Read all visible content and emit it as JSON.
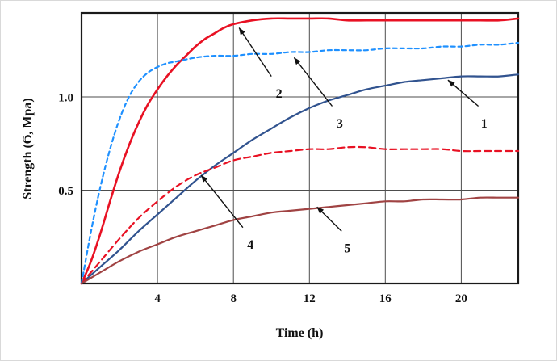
{
  "figure": {
    "background": "#ffffff",
    "border_color": "#d9d9d9"
  },
  "chart_data": {
    "type": "line",
    "title": "",
    "xlabel": "Time (h)",
    "ylabel": "Strength (Ϭ, Mpa)",
    "xlim": [
      0,
      23
    ],
    "ylim": [
      0,
      1.45
    ],
    "x_ticks": [
      4,
      8,
      12,
      16,
      20
    ],
    "x_tick_labels": [
      "4",
      "8",
      "12",
      "16",
      "20"
    ],
    "y_ticks": [
      0.5,
      1.0
    ],
    "y_tick_labels": [
      "0.5",
      "1.0"
    ],
    "grid": true,
    "grid_color": "#4d4d4d",
    "frame_color": "#1a1a1a",
    "annotation_color": "#111111",
    "legend_position": "none",
    "series": [
      {
        "name": "1",
        "color": "#31538f",
        "dash": "",
        "width": 2.2,
        "points": [
          [
            0,
            0
          ],
          [
            1,
            0.09
          ],
          [
            2,
            0.18
          ],
          [
            3,
            0.28
          ],
          [
            4,
            0.37
          ],
          [
            5,
            0.46
          ],
          [
            6,
            0.55
          ],
          [
            7,
            0.63
          ],
          [
            8,
            0.7
          ],
          [
            9,
            0.77
          ],
          [
            10,
            0.83
          ],
          [
            11,
            0.89
          ],
          [
            12,
            0.94
          ],
          [
            13,
            0.98
          ],
          [
            14,
            1.01
          ],
          [
            15,
            1.04
          ],
          [
            16,
            1.06
          ],
          [
            17,
            1.08
          ],
          [
            18,
            1.09
          ],
          [
            19,
            1.1
          ],
          [
            20,
            1.11
          ],
          [
            21,
            1.11
          ],
          [
            22,
            1.11
          ],
          [
            23,
            1.12
          ]
        ]
      },
      {
        "name": "2",
        "color": "#e81123",
        "dash": "",
        "width": 2.6,
        "points": [
          [
            0,
            0
          ],
          [
            0.5,
            0.12
          ],
          [
            1,
            0.27
          ],
          [
            1.5,
            0.44
          ],
          [
            2,
            0.6
          ],
          [
            2.5,
            0.74
          ],
          [
            3,
            0.86
          ],
          [
            3.5,
            0.96
          ],
          [
            4,
            1.04
          ],
          [
            4.5,
            1.11
          ],
          [
            5,
            1.17
          ],
          [
            5.5,
            1.22
          ],
          [
            6,
            1.27
          ],
          [
            6.5,
            1.31
          ],
          [
            7,
            1.34
          ],
          [
            7.5,
            1.37
          ],
          [
            8,
            1.39
          ],
          [
            9,
            1.41
          ],
          [
            10,
            1.42
          ],
          [
            11,
            1.42
          ],
          [
            12,
            1.42
          ],
          [
            13,
            1.42
          ],
          [
            14,
            1.41
          ],
          [
            15,
            1.41
          ],
          [
            16,
            1.41
          ],
          [
            17,
            1.41
          ],
          [
            18,
            1.41
          ],
          [
            19,
            1.41
          ],
          [
            20,
            1.41
          ],
          [
            21,
            1.41
          ],
          [
            22,
            1.41
          ],
          [
            23,
            1.42
          ]
        ]
      },
      {
        "name": "3",
        "color": "#1e90ff",
        "dash": "5,4",
        "width": 2.2,
        "points": [
          [
            0,
            0
          ],
          [
            0.5,
            0.28
          ],
          [
            1,
            0.52
          ],
          [
            1.5,
            0.72
          ],
          [
            2,
            0.88
          ],
          [
            2.5,
            1.0
          ],
          [
            3,
            1.08
          ],
          [
            3.5,
            1.13
          ],
          [
            4,
            1.16
          ],
          [
            4.5,
            1.18
          ],
          [
            5,
            1.19
          ],
          [
            6,
            1.21
          ],
          [
            7,
            1.22
          ],
          [
            8,
            1.22
          ],
          [
            9,
            1.23
          ],
          [
            10,
            1.23
          ],
          [
            11,
            1.24
          ],
          [
            12,
            1.24
          ],
          [
            13,
            1.25
          ],
          [
            14,
            1.25
          ],
          [
            15,
            1.25
          ],
          [
            16,
            1.26
          ],
          [
            17,
            1.26
          ],
          [
            18,
            1.26
          ],
          [
            19,
            1.27
          ],
          [
            20,
            1.27
          ],
          [
            21,
            1.28
          ],
          [
            22,
            1.28
          ],
          [
            23,
            1.29
          ]
        ]
      },
      {
        "name": "4",
        "color": "#e81123",
        "dash": "8,5",
        "width": 2.2,
        "points": [
          [
            0,
            0
          ],
          [
            1,
            0.12
          ],
          [
            2,
            0.24
          ],
          [
            3,
            0.35
          ],
          [
            4,
            0.44
          ],
          [
            5,
            0.52
          ],
          [
            6,
            0.58
          ],
          [
            7,
            0.62
          ],
          [
            8,
            0.66
          ],
          [
            9,
            0.68
          ],
          [
            10,
            0.7
          ],
          [
            11,
            0.71
          ],
          [
            12,
            0.72
          ],
          [
            13,
            0.72
          ],
          [
            14,
            0.73
          ],
          [
            15,
            0.73
          ],
          [
            16,
            0.72
          ],
          [
            17,
            0.72
          ],
          [
            18,
            0.72
          ],
          [
            19,
            0.72
          ],
          [
            20,
            0.71
          ],
          [
            21,
            0.71
          ],
          [
            22,
            0.71
          ],
          [
            23,
            0.71
          ]
        ]
      },
      {
        "name": "5",
        "color": "#a04343",
        "dash": "",
        "width": 2.2,
        "points": [
          [
            0,
            0
          ],
          [
            1,
            0.06
          ],
          [
            2,
            0.12
          ],
          [
            3,
            0.17
          ],
          [
            4,
            0.21
          ],
          [
            5,
            0.25
          ],
          [
            6,
            0.28
          ],
          [
            7,
            0.31
          ],
          [
            8,
            0.34
          ],
          [
            9,
            0.36
          ],
          [
            10,
            0.38
          ],
          [
            11,
            0.39
          ],
          [
            12,
            0.4
          ],
          [
            13,
            0.41
          ],
          [
            14,
            0.42
          ],
          [
            15,
            0.43
          ],
          [
            16,
            0.44
          ],
          [
            17,
            0.44
          ],
          [
            18,
            0.45
          ],
          [
            19,
            0.45
          ],
          [
            20,
            0.45
          ],
          [
            21,
            0.46
          ],
          [
            22,
            0.46
          ],
          [
            23,
            0.46
          ]
        ]
      }
    ],
    "annotations": [
      {
        "label": "1",
        "text": [
          21.2,
          0.86
        ],
        "from": [
          20.9,
          0.95
        ],
        "to": [
          19.3,
          1.09
        ]
      },
      {
        "label": "2",
        "text": [
          10.4,
          1.02
        ],
        "from": [
          10.0,
          1.11
        ],
        "to": [
          8.3,
          1.37
        ]
      },
      {
        "label": "3",
        "text": [
          13.6,
          0.86
        ],
        "from": [
          13.2,
          0.95
        ],
        "to": [
          11.2,
          1.21
        ]
      },
      {
        "label": "4",
        "text": [
          8.9,
          0.21
        ],
        "from": [
          8.5,
          0.3
        ],
        "to": [
          6.3,
          0.58
        ]
      },
      {
        "label": "5",
        "text": [
          14.0,
          0.19
        ],
        "from": [
          13.7,
          0.28
        ],
        "to": [
          12.4,
          0.41
        ]
      }
    ]
  }
}
